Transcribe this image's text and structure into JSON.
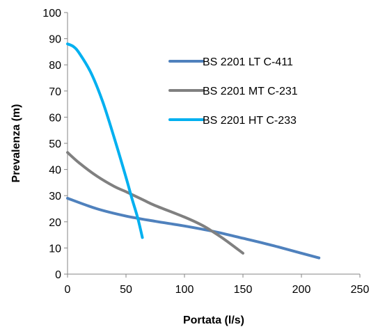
{
  "chart_data": {
    "type": "line",
    "xlabel": "Portata (l/s)",
    "ylabel": "Prevalenza (m)",
    "xlim": [
      0,
      250
    ],
    "ylim": [
      0,
      100
    ],
    "xticks": [
      0,
      50,
      100,
      150,
      200,
      250
    ],
    "yticks": [
      0,
      10,
      20,
      30,
      40,
      50,
      60,
      70,
      80,
      90,
      100
    ],
    "grid": false,
    "legend_position": "right",
    "series": [
      {
        "name": "BS 2201 LT C-411",
        "color": "#4F81BD",
        "points": [
          [
            0,
            29
          ],
          [
            25,
            25
          ],
          [
            50,
            22.2
          ],
          [
            75,
            20.2
          ],
          [
            100,
            18.4
          ],
          [
            125,
            16.3
          ],
          [
            150,
            13.7
          ],
          [
            175,
            11
          ],
          [
            200,
            8
          ],
          [
            215,
            6.2
          ]
        ]
      },
      {
        "name": "BS 2201 MT C-231",
        "color": "#808080",
        "points": [
          [
            0,
            46.5
          ],
          [
            10,
            42.5
          ],
          [
            25,
            37.5
          ],
          [
            40,
            33.5
          ],
          [
            50,
            31.5
          ],
          [
            65,
            28.3
          ],
          [
            75,
            26.2
          ],
          [
            100,
            21.8
          ],
          [
            115,
            18.7
          ],
          [
            125,
            16
          ],
          [
            135,
            13
          ],
          [
            150,
            8
          ]
        ]
      },
      {
        "name": "BS 2201 HT C-233",
        "color": "#00B0F0",
        "points": [
          [
            0,
            88
          ],
          [
            5,
            87
          ],
          [
            10,
            84.5
          ],
          [
            20,
            77
          ],
          [
            30,
            66
          ],
          [
            40,
            52
          ],
          [
            50,
            37
          ],
          [
            55,
            29
          ],
          [
            60,
            21.5
          ],
          [
            64,
            14
          ]
        ]
      }
    ]
  }
}
